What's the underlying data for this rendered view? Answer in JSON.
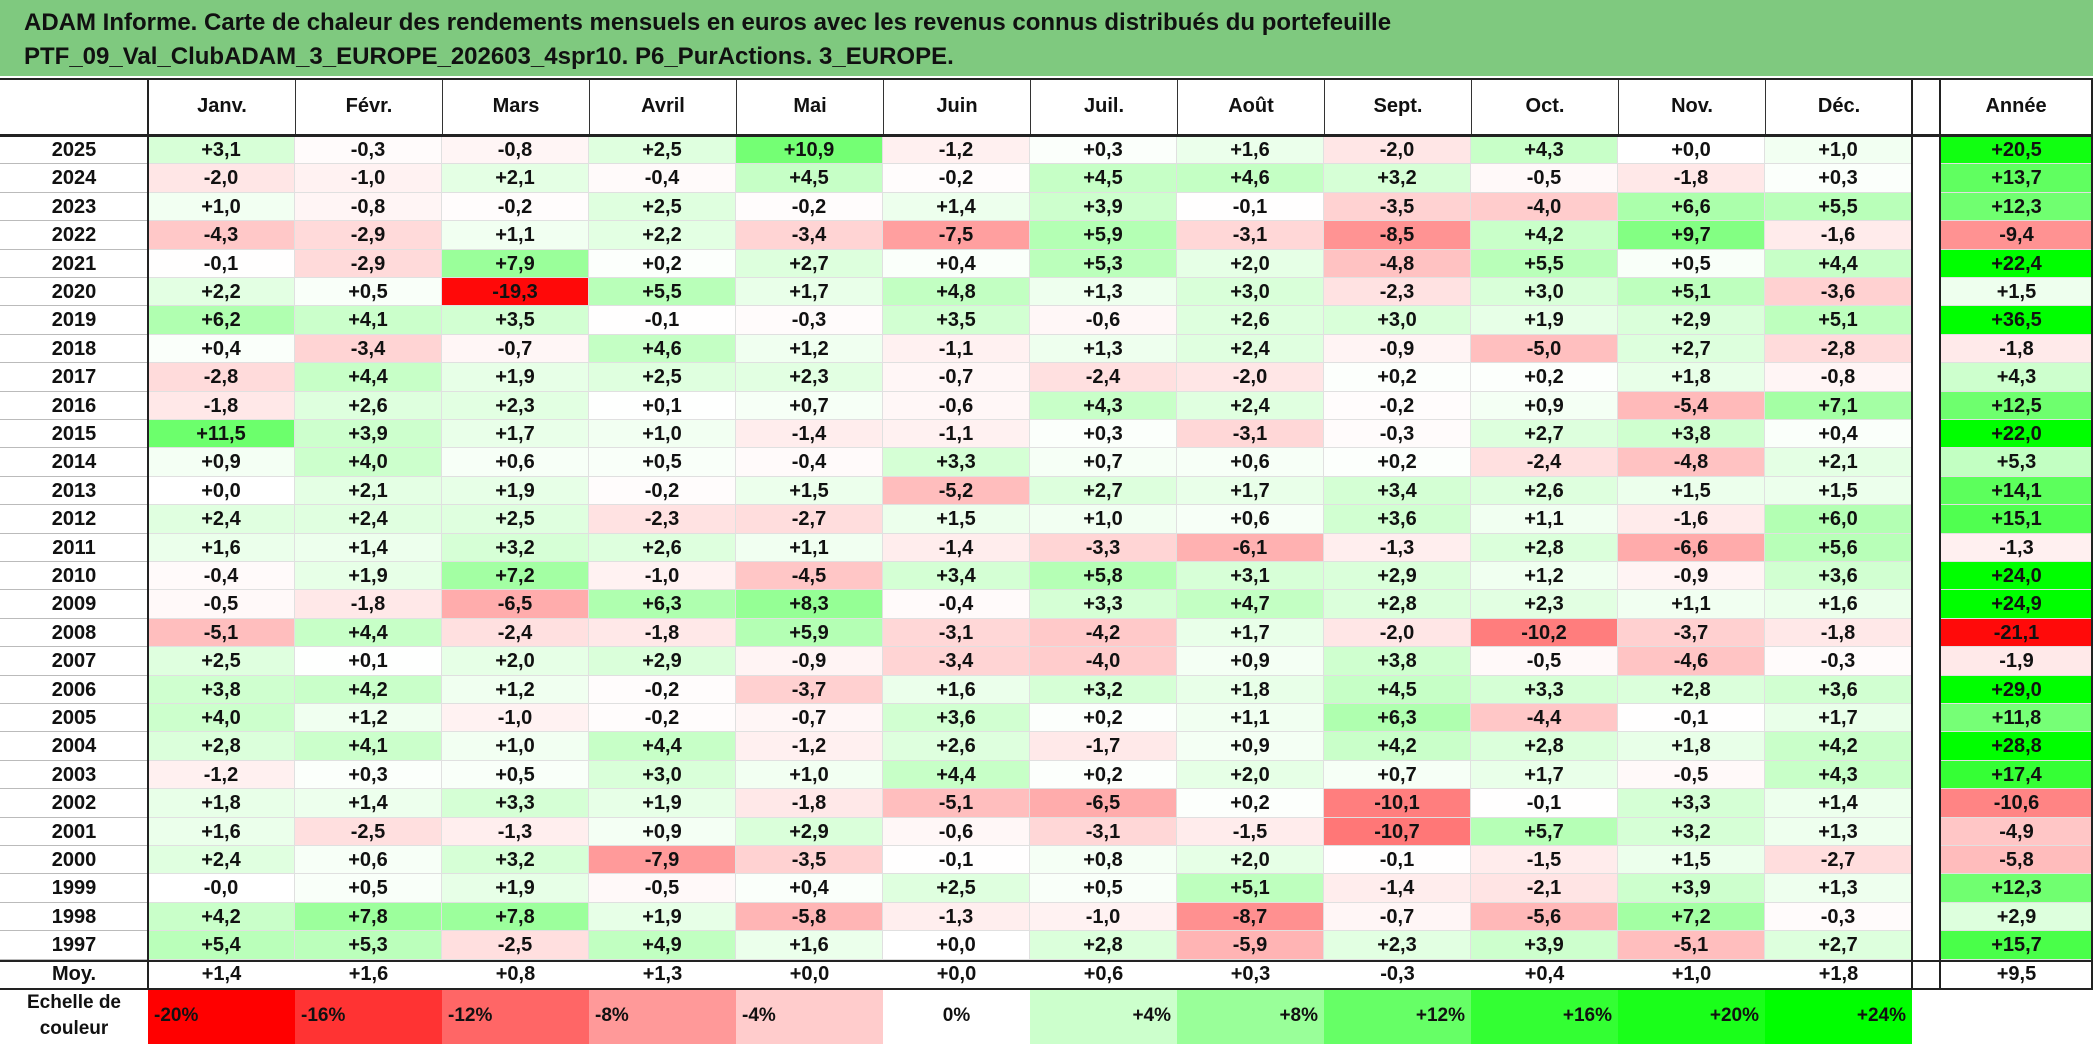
{
  "title": {
    "line1": "ADAM Informe. Carte de chaleur des rendements mensuels en euros avec les revenus connus distribués du portefeuille",
    "line2": "PTF_09_Val_ClubADAM_3_EUROPE_202603_4spr10. P6_PurActions. 3_EUROPE."
  },
  "chart_data": {
    "type": "heatmap",
    "columns": [
      "Janv.",
      "Févr.",
      "Mars",
      "Avril",
      "Mai",
      "Juin",
      "Juil.",
      "Août",
      "Sept.",
      "Oct.",
      "Nov.",
      "Déc."
    ],
    "annual_header": "Année",
    "rows": [
      {
        "year": "2025",
        "values": [
          "+3,1",
          "-0,3",
          "-0,8",
          "+2,5",
          "+10,9",
          "-1,2",
          "+0,3",
          "+1,6",
          "-2,0",
          "+4,3",
          "+0,0",
          "+1,0"
        ],
        "annual": "+20,5"
      },
      {
        "year": "2024",
        "values": [
          "-2,0",
          "-1,0",
          "+2,1",
          "-0,4",
          "+4,5",
          "-0,2",
          "+4,5",
          "+4,6",
          "+3,2",
          "-0,5",
          "-1,8",
          "+0,3"
        ],
        "annual": "+13,7"
      },
      {
        "year": "2023",
        "values": [
          "+1,0",
          "-0,8",
          "-0,2",
          "+2,5",
          "-0,2",
          "+1,4",
          "+3,9",
          "-0,1",
          "-3,5",
          "-4,0",
          "+6,6",
          "+5,5"
        ],
        "annual": "+12,3"
      },
      {
        "year": "2022",
        "values": [
          "-4,3",
          "-2,9",
          "+1,1",
          "+2,2",
          "-3,4",
          "-7,5",
          "+5,9",
          "-3,1",
          "-8,5",
          "+4,2",
          "+9,7",
          "-1,6"
        ],
        "annual": "-9,4"
      },
      {
        "year": "2021",
        "values": [
          "-0,1",
          "-2,9",
          "+7,9",
          "+0,2",
          "+2,7",
          "+0,4",
          "+5,3",
          "+2,0",
          "-4,8",
          "+5,5",
          "+0,5",
          "+4,4"
        ],
        "annual": "+22,4"
      },
      {
        "year": "2020",
        "values": [
          "+2,2",
          "+0,5",
          "-19,3",
          "+5,5",
          "+1,7",
          "+4,8",
          "+1,3",
          "+3,0",
          "-2,3",
          "+3,0",
          "+5,1",
          "-3,6"
        ],
        "annual": "+1,5"
      },
      {
        "year": "2019",
        "values": [
          "+6,2",
          "+4,1",
          "+3,5",
          "-0,1",
          "-0,3",
          "+3,5",
          "-0,6",
          "+2,6",
          "+3,0",
          "+1,9",
          "+2,9",
          "+5,1"
        ],
        "annual": "+36,5"
      },
      {
        "year": "2018",
        "values": [
          "+0,4",
          "-3,4",
          "-0,7",
          "+4,6",
          "+1,2",
          "-1,1",
          "+1,3",
          "+2,4",
          "-0,9",
          "-5,0",
          "+2,7",
          "-2,8"
        ],
        "annual": "-1,8"
      },
      {
        "year": "2017",
        "values": [
          "-2,8",
          "+4,4",
          "+1,9",
          "+2,5",
          "+2,3",
          "-0,7",
          "-2,4",
          "-2,0",
          "+0,2",
          "+0,2",
          "+1,8",
          "-0,8"
        ],
        "annual": "+4,3"
      },
      {
        "year": "2016",
        "values": [
          "-1,8",
          "+2,6",
          "+2,3",
          "+0,1",
          "+0,7",
          "-0,6",
          "+4,3",
          "+2,4",
          "-0,2",
          "+0,9",
          "-5,4",
          "+7,1"
        ],
        "annual": "+12,5"
      },
      {
        "year": "2015",
        "values": [
          "+11,5",
          "+3,9",
          "+1,7",
          "+1,0",
          "-1,4",
          "-1,1",
          "+0,3",
          "-3,1",
          "-0,3",
          "+2,7",
          "+3,8",
          "+0,4"
        ],
        "annual": "+22,0"
      },
      {
        "year": "2014",
        "values": [
          "+0,9",
          "+4,0",
          "+0,6",
          "+0,5",
          "-0,4",
          "+3,3",
          "+0,7",
          "+0,6",
          "+0,2",
          "-2,4",
          "-4,8",
          "+2,1"
        ],
        "annual": "+5,3"
      },
      {
        "year": "2013",
        "values": [
          "+0,0",
          "+2,1",
          "+1,9",
          "-0,2",
          "+1,5",
          "-5,2",
          "+2,7",
          "+1,7",
          "+3,4",
          "+2,6",
          "+1,5",
          "+1,5"
        ],
        "annual": "+14,1"
      },
      {
        "year": "2012",
        "values": [
          "+2,4",
          "+2,4",
          "+2,5",
          "-2,3",
          "-2,7",
          "+1,5",
          "+1,0",
          "+0,6",
          "+3,6",
          "+1,1",
          "-1,6",
          "+6,0"
        ],
        "annual": "+15,1"
      },
      {
        "year": "2011",
        "values": [
          "+1,6",
          "+1,4",
          "+3,2",
          "+2,6",
          "+1,1",
          "-1,4",
          "-3,3",
          "-6,1",
          "-1,3",
          "+2,8",
          "-6,6",
          "+5,6"
        ],
        "annual": "-1,3"
      },
      {
        "year": "2010",
        "values": [
          "-0,4",
          "+1,9",
          "+7,2",
          "-1,0",
          "-4,5",
          "+3,4",
          "+5,8",
          "+3,1",
          "+2,9",
          "+1,2",
          "-0,9",
          "+3,6"
        ],
        "annual": "+24,0"
      },
      {
        "year": "2009",
        "values": [
          "-0,5",
          "-1,8",
          "-6,5",
          "+6,3",
          "+8,3",
          "-0,4",
          "+3,3",
          "+4,7",
          "+2,8",
          "+2,3",
          "+1,1",
          "+1,6"
        ],
        "annual": "+24,9"
      },
      {
        "year": "2008",
        "values": [
          "-5,1",
          "+4,4",
          "-2,4",
          "-1,8",
          "+5,9",
          "-3,1",
          "-4,2",
          "+1,7",
          "-2,0",
          "-10,2",
          "-3,7",
          "-1,8"
        ],
        "annual": "-21,1"
      },
      {
        "year": "2007",
        "values": [
          "+2,5",
          "+0,1",
          "+2,0",
          "+2,9",
          "-0,9",
          "-3,4",
          "-4,0",
          "+0,9",
          "+3,8",
          "-0,5",
          "-4,6",
          "-0,3"
        ],
        "annual": "-1,9"
      },
      {
        "year": "2006",
        "values": [
          "+3,8",
          "+4,2",
          "+1,2",
          "-0,2",
          "-3,7",
          "+1,6",
          "+3,2",
          "+1,8",
          "+4,5",
          "+3,3",
          "+2,8",
          "+3,6"
        ],
        "annual": "+29,0"
      },
      {
        "year": "2005",
        "values": [
          "+4,0",
          "+1,2",
          "-1,0",
          "-0,2",
          "-0,7",
          "+3,6",
          "+0,2",
          "+1,1",
          "+6,3",
          "-4,4",
          "-0,1",
          "+1,7"
        ],
        "annual": "+11,8"
      },
      {
        "year": "2004",
        "values": [
          "+2,8",
          "+4,1",
          "+1,0",
          "+4,4",
          "-1,2",
          "+2,6",
          "-1,7",
          "+0,9",
          "+4,2",
          "+2,8",
          "+1,8",
          "+4,2"
        ],
        "annual": "+28,8"
      },
      {
        "year": "2003",
        "values": [
          "-1,2",
          "+0,3",
          "+0,5",
          "+3,0",
          "+1,0",
          "+4,4",
          "+0,2",
          "+2,0",
          "+0,7",
          "+1,7",
          "-0,5",
          "+4,3"
        ],
        "annual": "+17,4"
      },
      {
        "year": "2002",
        "values": [
          "+1,8",
          "+1,4",
          "+3,3",
          "+1,9",
          "-1,8",
          "-5,1",
          "-6,5",
          "+0,2",
          "-10,1",
          "-0,1",
          "+3,3",
          "+1,4"
        ],
        "annual": "-10,6"
      },
      {
        "year": "2001",
        "values": [
          "+1,6",
          "-2,5",
          "-1,3",
          "+0,9",
          "+2,9",
          "-0,6",
          "-3,1",
          "-1,5",
          "-10,7",
          "+5,7",
          "+3,2",
          "+1,3"
        ],
        "annual": "-4,9"
      },
      {
        "year": "2000",
        "values": [
          "+2,4",
          "+0,6",
          "+3,2",
          "-7,9",
          "-3,5",
          "-0,1",
          "+0,8",
          "+2,0",
          "-0,1",
          "-1,5",
          "+1,5",
          "-2,7"
        ],
        "annual": "-5,8"
      },
      {
        "year": "1999",
        "values": [
          "-0,0",
          "+0,5",
          "+1,9",
          "-0,5",
          "+0,4",
          "+2,5",
          "+0,5",
          "+5,1",
          "-1,4",
          "-2,1",
          "+3,9",
          "+1,3"
        ],
        "annual": "+12,3"
      },
      {
        "year": "1998",
        "values": [
          "+4,2",
          "+7,8",
          "+7,8",
          "+1,9",
          "-5,8",
          "-1,3",
          "-1,0",
          "-8,7",
          "-0,7",
          "-5,6",
          "+7,2",
          "-0,3"
        ],
        "annual": "+2,9"
      },
      {
        "year": "1997",
        "values": [
          "+5,4",
          "+5,3",
          "-2,5",
          "+4,9",
          "+1,6",
          "+0,0",
          "+2,8",
          "-5,9",
          "+2,3",
          "+3,9",
          "-5,1",
          "+2,7"
        ],
        "annual": "+15,7"
      }
    ],
    "average": {
      "label": "Moy.",
      "values": [
        "+1,4",
        "+1,6",
        "+0,8",
        "+1,3",
        "+0,0",
        "+0,0",
        "+0,6",
        "+0,3",
        "-0,3",
        "+0,4",
        "+1,0",
        "+1,8"
      ],
      "annual": "+9,5"
    },
    "scale": {
      "label_line1": "Echelle de",
      "label_line2": "couleur",
      "stops": [
        {
          "label": "-20%",
          "value": -20,
          "color": "#ff0000"
        },
        {
          "label": "-16%",
          "value": -16,
          "color": "#ff3333"
        },
        {
          "label": "-12%",
          "value": -12,
          "color": "#ff6666"
        },
        {
          "label": "-8%",
          "value": -8,
          "color": "#ff9999"
        },
        {
          "label": "-4%",
          "value": -4,
          "color": "#ffcccc"
        },
        {
          "label": "0%",
          "value": 0,
          "color": "#ffffff"
        },
        {
          "label": "+4%",
          "value": 4,
          "color": "#ccffcc"
        },
        {
          "label": "+8%",
          "value": 8,
          "color": "#99ff99"
        },
        {
          "label": "+12%",
          "value": 12,
          "color": "#66ff66"
        },
        {
          "label": "+16%",
          "value": 16,
          "color": "#33ff33"
        },
        {
          "label": "+20%",
          "value": 20,
          "color": "#1aff1a"
        },
        {
          "label": "+24%",
          "value": 24,
          "color": "#00ff00"
        }
      ]
    },
    "colors": {
      "title_bg": "#7fc97f",
      "negative_max": "#ff0000",
      "positive_max": "#00ff00",
      "neutral": "#ffffff"
    }
  }
}
